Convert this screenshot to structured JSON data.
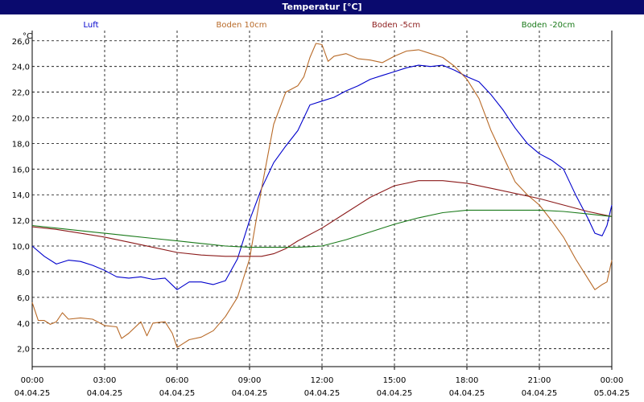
{
  "window": {
    "title": "Temperatur [°C]"
  },
  "chart_data": {
    "type": "line",
    "title": "Temperatur [°C]",
    "unit": "°C",
    "ylim": [
      0.6,
      26.8
    ],
    "yticks": [
      "2,0",
      "4,0",
      "6,0",
      "8,0",
      "10,0",
      "12,0",
      "14,0",
      "16,0",
      "18,0",
      "20,0",
      "22,0",
      "24,0",
      "26,0"
    ],
    "xticks": [
      {
        "time": "00:00",
        "date": "04.04.25"
      },
      {
        "time": "03:00",
        "date": "04.04.25"
      },
      {
        "time": "06:00",
        "date": "04.04.25"
      },
      {
        "time": "09:00",
        "date": "04.04.25"
      },
      {
        "time": "12:00",
        "date": "04.04.25"
      },
      {
        "time": "15:00",
        "date": "04.04.25"
      },
      {
        "time": "18:00",
        "date": "04.04.25"
      },
      {
        "time": "21:00",
        "date": "04.04.25"
      },
      {
        "time": "00:00",
        "date": "05.04.25"
      }
    ],
    "grid": true,
    "legend_position": "top",
    "series": [
      {
        "name": "Luft",
        "color": "#0000cc",
        "points": [
          [
            0,
            10.0
          ],
          [
            0.5,
            9.2
          ],
          [
            1,
            8.6
          ],
          [
            1.5,
            8.9
          ],
          [
            2,
            8.8
          ],
          [
            2.5,
            8.5
          ],
          [
            3,
            8.1
          ],
          [
            3.5,
            7.6
          ],
          [
            4,
            7.5
          ],
          [
            4.5,
            7.6
          ],
          [
            5,
            7.4
          ],
          [
            5.5,
            7.5
          ],
          [
            6,
            6.6
          ],
          [
            6.5,
            7.2
          ],
          [
            7,
            7.2
          ],
          [
            7.5,
            7.0
          ],
          [
            8,
            7.3
          ],
          [
            8.5,
            9.0
          ],
          [
            9,
            12.0
          ],
          [
            9.5,
            14.5
          ],
          [
            10,
            16.5
          ],
          [
            10.5,
            17.8
          ],
          [
            11,
            19.0
          ],
          [
            11.5,
            21.0
          ],
          [
            12,
            21.3
          ],
          [
            12.5,
            21.6
          ],
          [
            13,
            22.1
          ],
          [
            13.5,
            22.5
          ],
          [
            14,
            23.0
          ],
          [
            14.5,
            23.3
          ],
          [
            15,
            23.6
          ],
          [
            15.5,
            23.9
          ],
          [
            16,
            24.1
          ],
          [
            16.5,
            24.0
          ],
          [
            17,
            24.1
          ],
          [
            17.5,
            23.7
          ],
          [
            18,
            23.2
          ],
          [
            18.5,
            22.8
          ],
          [
            19,
            21.8
          ],
          [
            19.5,
            20.6
          ],
          [
            20,
            19.2
          ],
          [
            20.5,
            18.0
          ],
          [
            21,
            17.2
          ],
          [
            21.5,
            16.7
          ],
          [
            22,
            16.0
          ],
          [
            22.5,
            14.0
          ],
          [
            23,
            12.2
          ],
          [
            23.3,
            11.0
          ],
          [
            23.6,
            10.8
          ],
          [
            23.8,
            11.6
          ],
          [
            24,
            13.2
          ]
        ]
      },
      {
        "name": "Boden 10cm",
        "color": "#b86a28",
        "points": [
          [
            0,
            5.6
          ],
          [
            0.25,
            4.2
          ],
          [
            0.5,
            4.2
          ],
          [
            0.75,
            3.9
          ],
          [
            1,
            4.1
          ],
          [
            1.25,
            4.8
          ],
          [
            1.5,
            4.3
          ],
          [
            2,
            4.4
          ],
          [
            2.5,
            4.3
          ],
          [
            3,
            3.8
          ],
          [
            3.5,
            3.7
          ],
          [
            3.7,
            2.8
          ],
          [
            4,
            3.2
          ],
          [
            4.5,
            4.1
          ],
          [
            4.75,
            3.0
          ],
          [
            5,
            4.0
          ],
          [
            5.5,
            4.1
          ],
          [
            5.8,
            3.2
          ],
          [
            6,
            2.1
          ],
          [
            6.25,
            2.4
          ],
          [
            6.5,
            2.7
          ],
          [
            7,
            2.9
          ],
          [
            7.5,
            3.4
          ],
          [
            8,
            4.5
          ],
          [
            8.5,
            6.0
          ],
          [
            9,
            9.0
          ],
          [
            9.5,
            14.5
          ],
          [
            10,
            19.5
          ],
          [
            10.5,
            22.0
          ],
          [
            11,
            22.5
          ],
          [
            11.25,
            23.2
          ],
          [
            11.5,
            24.7
          ],
          [
            11.75,
            25.8
          ],
          [
            12,
            25.7
          ],
          [
            12.25,
            24.4
          ],
          [
            12.5,
            24.8
          ],
          [
            13,
            25.0
          ],
          [
            13.5,
            24.6
          ],
          [
            14,
            24.5
          ],
          [
            14.5,
            24.3
          ],
          [
            15,
            24.8
          ],
          [
            15.5,
            25.2
          ],
          [
            16,
            25.3
          ],
          [
            16.5,
            25.0
          ],
          [
            17,
            24.7
          ],
          [
            17.5,
            24.0
          ],
          [
            18,
            23.0
          ],
          [
            18.5,
            21.5
          ],
          [
            19,
            19.0
          ],
          [
            19.5,
            17.0
          ],
          [
            20,
            15.0
          ],
          [
            20.5,
            14.0
          ],
          [
            21,
            13.2
          ],
          [
            21.5,
            12.0
          ],
          [
            22,
            10.7
          ],
          [
            22.5,
            9.0
          ],
          [
            23,
            7.5
          ],
          [
            23.3,
            6.6
          ],
          [
            23.6,
            7.0
          ],
          [
            23.8,
            7.2
          ],
          [
            24,
            8.9
          ]
        ]
      },
      {
        "name": "Boden -5cm",
        "color": "#8b1a1a",
        "points": [
          [
            0,
            11.5
          ],
          [
            1,
            11.3
          ],
          [
            2,
            11.0
          ],
          [
            3,
            10.7
          ],
          [
            4,
            10.3
          ],
          [
            5,
            9.9
          ],
          [
            6,
            9.5
          ],
          [
            7,
            9.3
          ],
          [
            8,
            9.2
          ],
          [
            9,
            9.2
          ],
          [
            9.5,
            9.2
          ],
          [
            10,
            9.4
          ],
          [
            10.5,
            9.8
          ],
          [
            11,
            10.4
          ],
          [
            12,
            11.4
          ],
          [
            13,
            12.6
          ],
          [
            14,
            13.8
          ],
          [
            15,
            14.7
          ],
          [
            16,
            15.1
          ],
          [
            17,
            15.1
          ],
          [
            18,
            14.9
          ],
          [
            19,
            14.5
          ],
          [
            20,
            14.1
          ],
          [
            21,
            13.7
          ],
          [
            22,
            13.2
          ],
          [
            23,
            12.7
          ],
          [
            24,
            12.3
          ]
        ]
      },
      {
        "name": "Boden -20cm",
        "color": "#1a7a1a",
        "points": [
          [
            0,
            11.6
          ],
          [
            1,
            11.4
          ],
          [
            2,
            11.2
          ],
          [
            3,
            11.0
          ],
          [
            4,
            10.8
          ],
          [
            5,
            10.6
          ],
          [
            6,
            10.4
          ],
          [
            7,
            10.2
          ],
          [
            8,
            10.0
          ],
          [
            9,
            9.9
          ],
          [
            10,
            9.9
          ],
          [
            11,
            9.9
          ],
          [
            12,
            10.0
          ],
          [
            13,
            10.5
          ],
          [
            14,
            11.1
          ],
          [
            15,
            11.7
          ],
          [
            16,
            12.2
          ],
          [
            17,
            12.6
          ],
          [
            18,
            12.8
          ],
          [
            19,
            12.8
          ],
          [
            20,
            12.8
          ],
          [
            21,
            12.8
          ],
          [
            22,
            12.7
          ],
          [
            23,
            12.5
          ],
          [
            24,
            12.3
          ]
        ]
      }
    ]
  }
}
